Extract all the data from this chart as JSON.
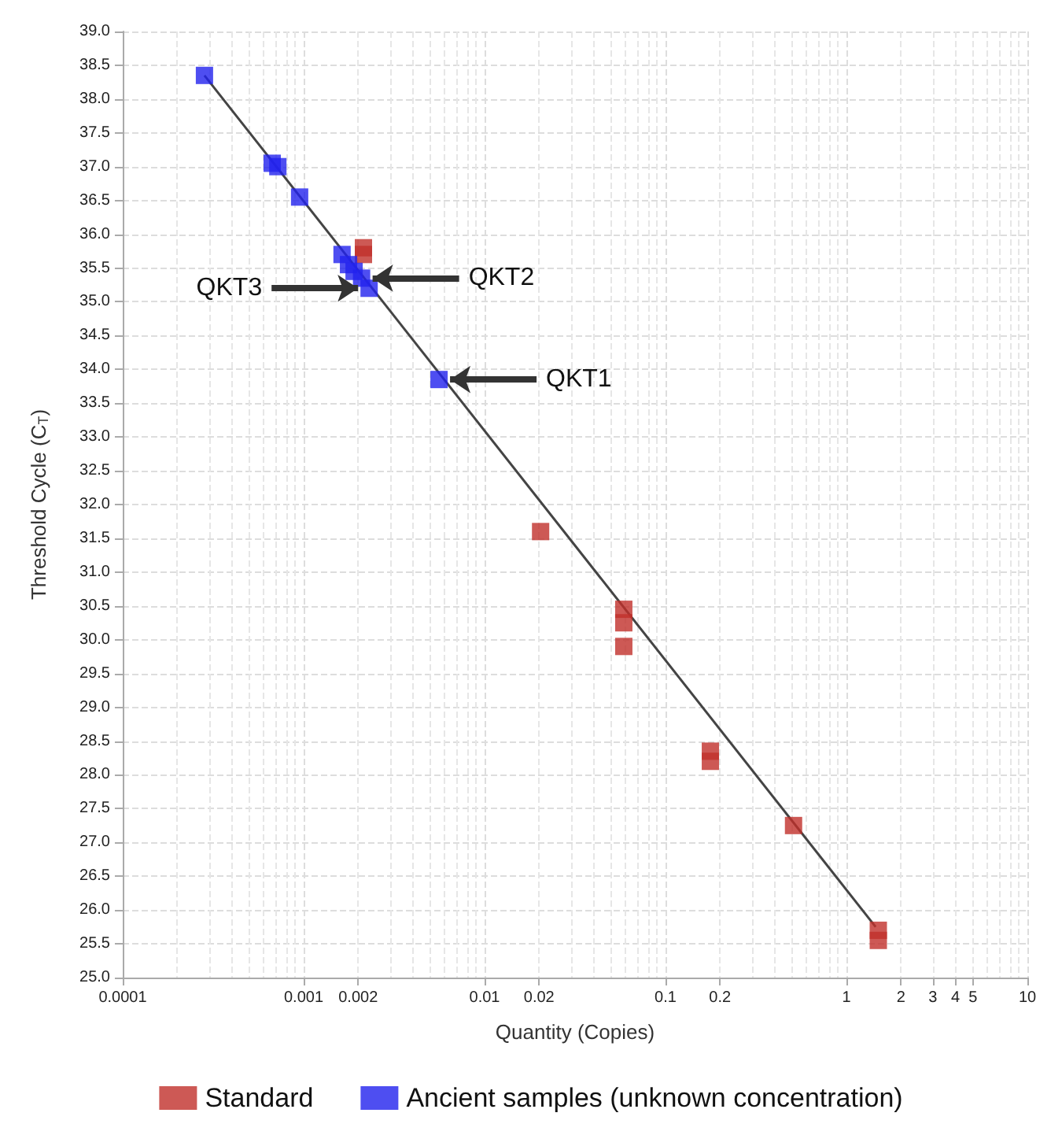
{
  "chart_data": {
    "type": "scatter",
    "xlabel": "Quantity (Copies)",
    "ylabel": "Threshold Cycle (C$_{T}$)",
    "log": "x",
    "xlim": [
      0.0001,
      10
    ],
    "xticks": [
      0.0001,
      0.001,
      0.002,
      0.01,
      0.02,
      0.1,
      0.2,
      1,
      2,
      3,
      4,
      5,
      10
    ],
    "ylim": [
      25,
      39
    ],
    "yticks": [
      {
        "value": 25,
        "label": "25.0"
      },
      {
        "value": 25.5,
        "label": "25.5"
      },
      {
        "value": 26,
        "label": "26.0"
      },
      {
        "value": 26.5,
        "label": "26.5"
      },
      {
        "value": 27,
        "label": "27.0"
      },
      {
        "value": 27.5,
        "label": "27.5"
      },
      {
        "value": 28,
        "label": "28.0"
      },
      {
        "value": 28.5,
        "label": "28.5"
      },
      {
        "value": 29,
        "label": "29.0"
      },
      {
        "value": 29.5,
        "label": "29.5"
      },
      {
        "value": 30,
        "label": "30.0"
      },
      {
        "value": 30.5,
        "label": "30.5"
      },
      {
        "value": 31,
        "label": "31.0"
      },
      {
        "value": 31.5,
        "label": "31.5"
      },
      {
        "value": 32,
        "label": "32.0"
      },
      {
        "value": 32.5,
        "label": "32.5"
      },
      {
        "value": 33,
        "label": "33.0"
      },
      {
        "value": 33.5,
        "label": "33.5"
      },
      {
        "value": 34,
        "label": "34.0"
      },
      {
        "value": 34.5,
        "label": "34.5"
      },
      {
        "value": 35,
        "label": "35.0"
      },
      {
        "value": 35.5,
        "label": "35.5"
      },
      {
        "value": 36,
        "label": "36.0"
      },
      {
        "value": 36.5,
        "label": "36.5"
      },
      {
        "value": 37,
        "label": "37.0"
      },
      {
        "value": 37.5,
        "label": "37.5"
      },
      {
        "value": 38,
        "label": "38.0"
      },
      {
        "value": 38.5,
        "label": "38.5"
      },
      {
        "value": 39,
        "label": "39.0"
      }
    ],
    "grid": true,
    "legend": "bottom",
    "marker": "square",
    "series": [
      {
        "type": "line",
        "color": "#444444",
        "marker": "none",
        "x": [
          0.000283,
          1.45
        ],
        "values": [
          38.35,
          25.75
        ]
      },
      {
        "name": "Standard",
        "color": "#c0302a",
        "x": [
          0.00214,
          0.00214,
          0.0204,
          0.0588,
          0.0588,
          0.0588,
          0.177,
          0.177,
          0.51,
          1.5,
          1.5
        ],
        "values": [
          35.8,
          35.7,
          31.6,
          30.45,
          30.25,
          29.9,
          28.35,
          28.2,
          27.25,
          25.7,
          25.55
        ]
      },
      {
        "name": "Ancient samples (unknown concentration)",
        "color": "#2222ee",
        "x": [
          0.000283,
          0.00067,
          0.00072,
          0.00095,
          0.00163,
          0.00177,
          0.0019,
          0.00209,
          0.0023,
          0.0056
        ],
        "values": [
          38.35,
          37.05,
          37.0,
          36.55,
          35.7,
          35.55,
          35.45,
          35.35,
          35.2,
          33.85
        ]
      }
    ],
    "annotations": [
      {
        "text": "QKT1",
        "x": 0.0056,
        "y": 33.85
      },
      {
        "text": "QKT2",
        "x": 0.00209,
        "y": 35.35
      },
      {
        "text": "QKT3",
        "x": 0.0023,
        "y": 35.2
      }
    ]
  }
}
